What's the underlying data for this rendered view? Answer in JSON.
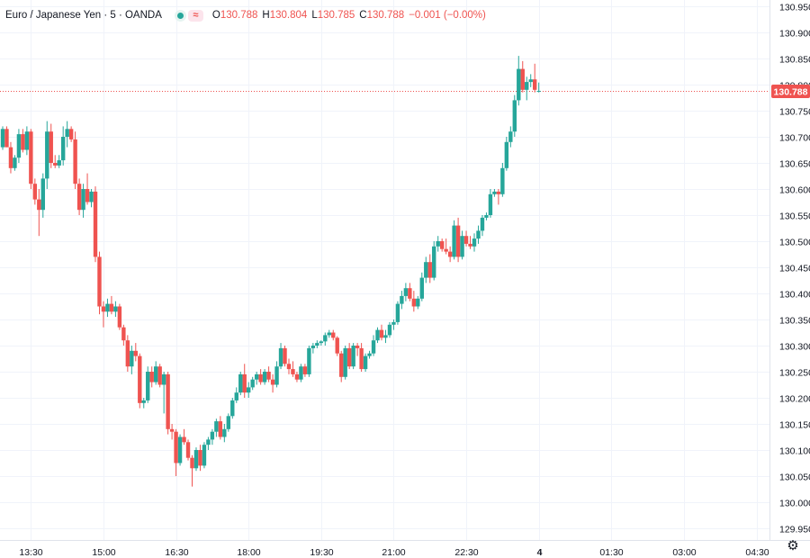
{
  "legend": {
    "symbol": "Euro / Japanese Yen · 5 · OANDA",
    "open_label": "O",
    "open": "130.788",
    "high_label": "H",
    "high": "130.804",
    "low_label": "L",
    "low": "130.785",
    "close_label": "C",
    "close": "130.788",
    "change": "−0.001 (−0.00%)"
  },
  "icons": {
    "eye": "eye-toggle-icon",
    "wave": "compare-icon",
    "settings": "gear-icon"
  },
  "colors": {
    "up": "#26a69a",
    "down": "#ef5350",
    "grid": "#f0f3fa",
    "axis_text": "#131722"
  },
  "chart_data": {
    "type": "candlestick",
    "last_price_label": "130.788",
    "ylim": [
      129.95,
      130.95
    ],
    "y_ticks": [
      "129.950",
      "130.000",
      "130.050",
      "130.100",
      "130.150",
      "130.200",
      "130.250",
      "130.300",
      "130.350",
      "130.400",
      "130.450",
      "130.500",
      "130.550",
      "130.600",
      "130.650",
      "130.700",
      "130.750",
      "130.800",
      "130.850",
      "130.900",
      "130.950"
    ],
    "x_range": [
      "12:55",
      "04:35"
    ],
    "x_ticks": [
      {
        "t": "13:30",
        "label": "13:30"
      },
      {
        "t": "15:00",
        "label": "15:00"
      },
      {
        "t": "16:30",
        "label": "16:30"
      },
      {
        "t": "18:00",
        "label": "18:00"
      },
      {
        "t": "19:30",
        "label": "19:30"
      },
      {
        "t": "21:00",
        "label": "21:00"
      },
      {
        "t": "22:30",
        "label": "22:30"
      },
      {
        "t": "00:00",
        "label": "4"
      },
      {
        "t": "01:30",
        "label": "01:30"
      },
      {
        "t": "03:00",
        "label": "03:00"
      },
      {
        "t": "04:30",
        "label": "04:30"
      }
    ],
    "grid": true,
    "candles": [
      {
        "t": "12:55",
        "o": 130.68,
        "h": 130.72,
        "l": 130.675,
        "c": 130.715
      },
      {
        "t": "13:00",
        "o": 130.715,
        "h": 130.72,
        "l": 130.68,
        "c": 130.68
      },
      {
        "t": "13:05",
        "o": 130.68,
        "h": 130.69,
        "l": 130.63,
        "c": 130.64
      },
      {
        "t": "13:10",
        "o": 130.64,
        "h": 130.665,
        "l": 130.635,
        "c": 130.66
      },
      {
        "t": "13:15",
        "o": 130.66,
        "h": 130.715,
        "l": 130.65,
        "c": 130.705
      },
      {
        "t": "13:20",
        "o": 130.705,
        "h": 130.715,
        "l": 130.67,
        "c": 130.675
      },
      {
        "t": "13:25",
        "o": 130.675,
        "h": 130.72,
        "l": 130.665,
        "c": 130.71
      },
      {
        "t": "13:30",
        "o": 130.71,
        "h": 130.715,
        "l": 130.6,
        "c": 130.61
      },
      {
        "t": "13:35",
        "o": 130.61,
        "h": 130.62,
        "l": 130.57,
        "c": 130.58
      },
      {
        "t": "13:40",
        "o": 130.58,
        "h": 130.6,
        "l": 130.51,
        "c": 130.56
      },
      {
        "t": "13:45",
        "o": 130.56,
        "h": 130.63,
        "l": 130.545,
        "c": 130.62
      },
      {
        "t": "13:50",
        "o": 130.62,
        "h": 130.73,
        "l": 130.6,
        "c": 130.71
      },
      {
        "t": "13:55",
        "o": 130.71,
        "h": 130.725,
        "l": 130.64,
        "c": 130.65
      },
      {
        "t": "14:00",
        "o": 130.65,
        "h": 130.665,
        "l": 130.64,
        "c": 130.645
      },
      {
        "t": "14:05",
        "o": 130.645,
        "h": 130.665,
        "l": 130.64,
        "c": 130.655
      },
      {
        "t": "14:10",
        "o": 130.655,
        "h": 130.72,
        "l": 130.645,
        "c": 130.7
      },
      {
        "t": "14:15",
        "o": 130.7,
        "h": 130.73,
        "l": 130.68,
        "c": 130.715
      },
      {
        "t": "14:20",
        "o": 130.715,
        "h": 130.72,
        "l": 130.69,
        "c": 130.695
      },
      {
        "t": "14:25",
        "o": 130.695,
        "h": 130.71,
        "l": 130.6,
        "c": 130.61
      },
      {
        "t": "14:30",
        "o": 130.61,
        "h": 130.62,
        "l": 130.55,
        "c": 130.56
      },
      {
        "t": "14:35",
        "o": 130.56,
        "h": 130.61,
        "l": 130.545,
        "c": 130.6
      },
      {
        "t": "14:40",
        "o": 130.6,
        "h": 130.63,
        "l": 130.57,
        "c": 130.575
      },
      {
        "t": "14:45",
        "o": 130.575,
        "h": 130.6,
        "l": 130.565,
        "c": 130.595
      },
      {
        "t": "14:50",
        "o": 130.595,
        "h": 130.605,
        "l": 130.46,
        "c": 130.47
      },
      {
        "t": "14:55",
        "o": 130.47,
        "h": 130.48,
        "l": 130.36,
        "c": 130.375
      },
      {
        "t": "15:00",
        "o": 130.375,
        "h": 130.385,
        "l": 130.335,
        "c": 130.365
      },
      {
        "t": "15:05",
        "o": 130.365,
        "h": 130.39,
        "l": 130.355,
        "c": 130.38
      },
      {
        "t": "15:10",
        "o": 130.38,
        "h": 130.395,
        "l": 130.36,
        "c": 130.365
      },
      {
        "t": "15:15",
        "o": 130.365,
        "h": 130.385,
        "l": 130.355,
        "c": 130.375
      },
      {
        "t": "15:20",
        "o": 130.375,
        "h": 130.38,
        "l": 130.33,
        "c": 130.335
      },
      {
        "t": "15:25",
        "o": 130.335,
        "h": 130.34,
        "l": 130.3,
        "c": 130.31
      },
      {
        "t": "15:30",
        "o": 130.31,
        "h": 130.32,
        "l": 130.25,
        "c": 130.26
      },
      {
        "t": "15:35",
        "o": 130.26,
        "h": 130.3,
        "l": 130.245,
        "c": 130.29
      },
      {
        "t": "15:40",
        "o": 130.29,
        "h": 130.305,
        "l": 130.27,
        "c": 130.28
      },
      {
        "t": "15:45",
        "o": 130.28,
        "h": 130.285,
        "l": 130.18,
        "c": 130.19
      },
      {
        "t": "15:50",
        "o": 130.19,
        "h": 130.2,
        "l": 130.18,
        "c": 130.195
      },
      {
        "t": "15:55",
        "o": 130.195,
        "h": 130.26,
        "l": 130.19,
        "c": 130.25
      },
      {
        "t": "16:00",
        "o": 130.25,
        "h": 130.26,
        "l": 130.22,
        "c": 130.23
      },
      {
        "t": "16:05",
        "o": 130.23,
        "h": 130.27,
        "l": 130.225,
        "c": 130.26
      },
      {
        "t": "16:10",
        "o": 130.26,
        "h": 130.265,
        "l": 130.22,
        "c": 130.225
      },
      {
        "t": "16:15",
        "o": 130.225,
        "h": 130.25,
        "l": 130.17,
        "c": 130.245
      },
      {
        "t": "16:20",
        "o": 130.245,
        "h": 130.25,
        "l": 130.13,
        "c": 130.14
      },
      {
        "t": "16:25",
        "o": 130.14,
        "h": 130.15,
        "l": 130.12,
        "c": 130.135
      },
      {
        "t": "16:30",
        "o": 130.135,
        "h": 130.14,
        "l": 130.05,
        "c": 130.075
      },
      {
        "t": "16:35",
        "o": 130.075,
        "h": 130.13,
        "l": 130.07,
        "c": 130.125
      },
      {
        "t": "16:40",
        "o": 130.125,
        "h": 130.14,
        "l": 130.11,
        "c": 130.115
      },
      {
        "t": "16:45",
        "o": 130.115,
        "h": 130.12,
        "l": 130.08,
        "c": 130.085
      },
      {
        "t": "16:50",
        "o": 130.085,
        "h": 130.09,
        "l": 130.03,
        "c": 130.065
      },
      {
        "t": "16:55",
        "o": 130.065,
        "h": 130.105,
        "l": 130.06,
        "c": 130.1
      },
      {
        "t": "17:00",
        "o": 130.1,
        "h": 130.11,
        "l": 130.06,
        "c": 130.07
      },
      {
        "t": "17:05",
        "o": 130.07,
        "h": 130.115,
        "l": 130.065,
        "c": 130.11
      },
      {
        "t": "17:10",
        "o": 130.11,
        "h": 130.125,
        "l": 130.1,
        "c": 130.12
      },
      {
        "t": "17:15",
        "o": 130.12,
        "h": 130.14,
        "l": 130.11,
        "c": 130.135
      },
      {
        "t": "17:20",
        "o": 130.135,
        "h": 130.16,
        "l": 130.125,
        "c": 130.155
      },
      {
        "t": "17:25",
        "o": 130.155,
        "h": 130.165,
        "l": 130.12,
        "c": 130.125
      },
      {
        "t": "17:30",
        "o": 130.125,
        "h": 130.15,
        "l": 130.115,
        "c": 130.14
      },
      {
        "t": "17:35",
        "o": 130.14,
        "h": 130.17,
        "l": 130.135,
        "c": 130.165
      },
      {
        "t": "17:40",
        "o": 130.165,
        "h": 130.2,
        "l": 130.16,
        "c": 130.195
      },
      {
        "t": "17:45",
        "o": 130.195,
        "h": 130.22,
        "l": 130.19,
        "c": 130.21
      },
      {
        "t": "17:50",
        "o": 130.21,
        "h": 130.25,
        "l": 130.205,
        "c": 130.245
      },
      {
        "t": "17:55",
        "o": 130.245,
        "h": 130.265,
        "l": 130.2,
        "c": 130.21
      },
      {
        "t": "18:00",
        "o": 130.21,
        "h": 130.23,
        "l": 130.2,
        "c": 130.22
      },
      {
        "t": "18:05",
        "o": 130.22,
        "h": 130.24,
        "l": 130.215,
        "c": 130.235
      },
      {
        "t": "18:10",
        "o": 130.235,
        "h": 130.25,
        "l": 130.225,
        "c": 130.245
      },
      {
        "t": "18:15",
        "o": 130.245,
        "h": 130.255,
        "l": 130.225,
        "c": 130.23
      },
      {
        "t": "18:20",
        "o": 130.23,
        "h": 130.255,
        "l": 130.225,
        "c": 130.25
      },
      {
        "t": "18:25",
        "o": 130.25,
        "h": 130.26,
        "l": 130.23,
        "c": 130.235
      },
      {
        "t": "18:30",
        "o": 130.235,
        "h": 130.245,
        "l": 130.21,
        "c": 130.225
      },
      {
        "t": "18:35",
        "o": 130.225,
        "h": 130.27,
        "l": 130.22,
        "c": 130.26
      },
      {
        "t": "18:40",
        "o": 130.26,
        "h": 130.305,
        "l": 130.255,
        "c": 130.295
      },
      {
        "t": "18:45",
        "o": 130.295,
        "h": 130.3,
        "l": 130.26,
        "c": 130.265
      },
      {
        "t": "18:50",
        "o": 130.265,
        "h": 130.275,
        "l": 130.245,
        "c": 130.255
      },
      {
        "t": "18:55",
        "o": 130.255,
        "h": 130.27,
        "l": 130.24,
        "c": 130.245
      },
      {
        "t": "19:00",
        "o": 130.245,
        "h": 130.25,
        "l": 130.23,
        "c": 130.235
      },
      {
        "t": "19:05",
        "o": 130.235,
        "h": 130.265,
        "l": 130.23,
        "c": 130.26
      },
      {
        "t": "19:10",
        "o": 130.26,
        "h": 130.265,
        "l": 130.24,
        "c": 130.245
      },
      {
        "t": "19:15",
        "o": 130.245,
        "h": 130.3,
        "l": 130.24,
        "c": 130.295
      },
      {
        "t": "19:20",
        "o": 130.295,
        "h": 130.305,
        "l": 130.285,
        "c": 130.3
      },
      {
        "t": "19:25",
        "o": 130.3,
        "h": 130.31,
        "l": 130.295,
        "c": 130.305
      },
      {
        "t": "19:30",
        "o": 130.305,
        "h": 130.31,
        "l": 130.3,
        "c": 130.308
      },
      {
        "t": "19:35",
        "o": 130.308,
        "h": 130.325,
        "l": 130.3,
        "c": 130.32
      },
      {
        "t": "19:40",
        "o": 130.32,
        "h": 130.33,
        "l": 130.315,
        "c": 130.325
      },
      {
        "t": "19:45",
        "o": 130.325,
        "h": 130.33,
        "l": 130.31,
        "c": 130.315
      },
      {
        "t": "19:50",
        "o": 130.315,
        "h": 130.318,
        "l": 130.28,
        "c": 130.285
      },
      {
        "t": "19:55",
        "o": 130.285,
        "h": 130.29,
        "l": 130.23,
        "c": 130.24
      },
      {
        "t": "20:00",
        "o": 130.24,
        "h": 130.3,
        "l": 130.235,
        "c": 130.295
      },
      {
        "t": "20:05",
        "o": 130.295,
        "h": 130.305,
        "l": 130.255,
        "c": 130.26
      },
      {
        "t": "20:10",
        "o": 130.26,
        "h": 130.305,
        "l": 130.255,
        "c": 130.3
      },
      {
        "t": "20:15",
        "o": 130.3,
        "h": 130.305,
        "l": 130.28,
        "c": 130.295
      },
      {
        "t": "20:20",
        "o": 130.295,
        "h": 130.305,
        "l": 130.25,
        "c": 130.255
      },
      {
        "t": "20:25",
        "o": 130.255,
        "h": 130.285,
        "l": 130.25,
        "c": 130.28
      },
      {
        "t": "20:30",
        "o": 130.28,
        "h": 130.29,
        "l": 130.275,
        "c": 130.285
      },
      {
        "t": "20:35",
        "o": 130.285,
        "h": 130.32,
        "l": 130.28,
        "c": 130.31
      },
      {
        "t": "20:40",
        "o": 130.31,
        "h": 130.335,
        "l": 130.305,
        "c": 130.33
      },
      {
        "t": "20:45",
        "o": 130.33,
        "h": 130.34,
        "l": 130.31,
        "c": 130.315
      },
      {
        "t": "20:50",
        "o": 130.315,
        "h": 130.33,
        "l": 130.305,
        "c": 130.32
      },
      {
        "t": "20:55",
        "o": 130.32,
        "h": 130.345,
        "l": 130.315,
        "c": 130.34
      },
      {
        "t": "21:00",
        "o": 130.34,
        "h": 130.35,
        "l": 130.33,
        "c": 130.345
      },
      {
        "t": "21:05",
        "o": 130.345,
        "h": 130.385,
        "l": 130.34,
        "c": 130.38
      },
      {
        "t": "21:10",
        "o": 130.38,
        "h": 130.405,
        "l": 130.37,
        "c": 130.395
      },
      {
        "t": "21:15",
        "o": 130.395,
        "h": 130.42,
        "l": 130.385,
        "c": 130.41
      },
      {
        "t": "21:20",
        "o": 130.41,
        "h": 130.42,
        "l": 130.385,
        "c": 130.39
      },
      {
        "t": "21:25",
        "o": 130.39,
        "h": 130.405,
        "l": 130.365,
        "c": 130.375
      },
      {
        "t": "21:30",
        "o": 130.375,
        "h": 130.395,
        "l": 130.37,
        "c": 130.39
      },
      {
        "t": "21:35",
        "o": 130.39,
        "h": 130.44,
        "l": 130.385,
        "c": 130.43
      },
      {
        "t": "21:40",
        "o": 130.43,
        "h": 130.47,
        "l": 130.42,
        "c": 130.46
      },
      {
        "t": "21:45",
        "o": 130.46,
        "h": 130.475,
        "l": 130.42,
        "c": 130.43
      },
      {
        "t": "21:50",
        "o": 130.43,
        "h": 130.5,
        "l": 130.425,
        "c": 130.49
      },
      {
        "t": "21:55",
        "o": 130.49,
        "h": 130.51,
        "l": 130.48,
        "c": 130.5
      },
      {
        "t": "22:00",
        "o": 130.5,
        "h": 130.505,
        "l": 130.48,
        "c": 130.485
      },
      {
        "t": "22:05",
        "o": 130.485,
        "h": 130.505,
        "l": 130.475,
        "c": 130.48
      },
      {
        "t": "22:10",
        "o": 130.48,
        "h": 130.49,
        "l": 130.46,
        "c": 130.47
      },
      {
        "t": "22:15",
        "o": 130.47,
        "h": 130.54,
        "l": 130.465,
        "c": 130.53
      },
      {
        "t": "22:20",
        "o": 130.53,
        "h": 130.545,
        "l": 130.46,
        "c": 130.47
      },
      {
        "t": "22:25",
        "o": 130.47,
        "h": 130.52,
        "l": 130.465,
        "c": 130.51
      },
      {
        "t": "22:30",
        "o": 130.51,
        "h": 130.52,
        "l": 130.49,
        "c": 130.495
      },
      {
        "t": "22:35",
        "o": 130.495,
        "h": 130.51,
        "l": 130.485,
        "c": 130.49
      },
      {
        "t": "22:40",
        "o": 130.49,
        "h": 130.515,
        "l": 130.48,
        "c": 130.505
      },
      {
        "t": "22:45",
        "o": 130.505,
        "h": 130.53,
        "l": 130.495,
        "c": 130.52
      },
      {
        "t": "22:50",
        "o": 130.52,
        "h": 130.55,
        "l": 130.51,
        "c": 130.545
      },
      {
        "t": "22:55",
        "o": 130.545,
        "h": 130.555,
        "l": 130.54,
        "c": 130.55
      },
      {
        "t": "23:00",
        "o": 130.55,
        "h": 130.6,
        "l": 130.545,
        "c": 130.59
      },
      {
        "t": "23:05",
        "o": 130.59,
        "h": 130.6,
        "l": 130.585,
        "c": 130.595
      },
      {
        "t": "23:10",
        "o": 130.595,
        "h": 130.6,
        "l": 130.57,
        "c": 130.59
      },
      {
        "t": "23:15",
        "o": 130.59,
        "h": 130.65,
        "l": 130.585,
        "c": 130.64
      },
      {
        "t": "23:20",
        "o": 130.64,
        "h": 130.7,
        "l": 130.635,
        "c": 130.69
      },
      {
        "t": "23:25",
        "o": 130.69,
        "h": 130.72,
        "l": 130.68,
        "c": 130.71
      },
      {
        "t": "23:30",
        "o": 130.71,
        "h": 130.78,
        "l": 130.7,
        "c": 130.77
      },
      {
        "t": "23:35",
        "o": 130.77,
        "h": 130.855,
        "l": 130.76,
        "c": 130.83
      },
      {
        "t": "23:40",
        "o": 130.83,
        "h": 130.845,
        "l": 130.785,
        "c": 130.79
      },
      {
        "t": "23:45",
        "o": 130.79,
        "h": 130.815,
        "l": 130.77,
        "c": 130.805
      },
      {
        "t": "23:50",
        "o": 130.805,
        "h": 130.82,
        "l": 130.795,
        "c": 130.81
      },
      {
        "t": "23:55",
        "o": 130.81,
        "h": 130.84,
        "l": 130.785,
        "c": 130.79
      },
      {
        "t": "00:00",
        "o": 130.788,
        "h": 130.804,
        "l": 130.785,
        "c": 130.788
      }
    ]
  }
}
